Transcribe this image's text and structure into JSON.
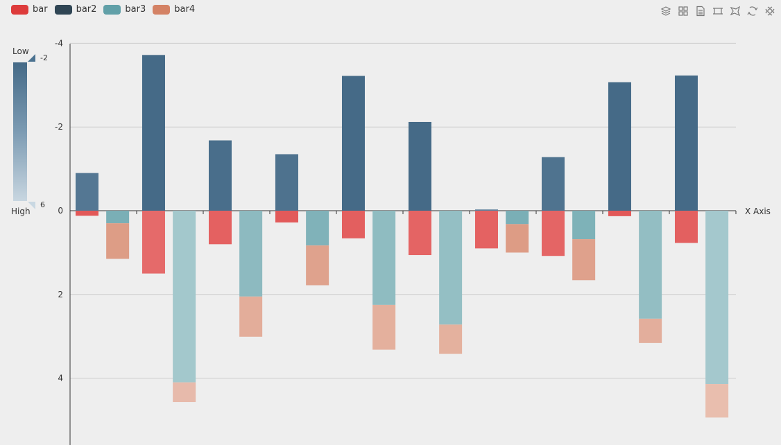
{
  "legend": [
    {
      "name": "bar",
      "color": "#dd3b3b"
    },
    {
      "name": "bar2",
      "color": "#2f4554"
    },
    {
      "name": "bar3",
      "color": "#61a0a8"
    },
    {
      "name": "bar4",
      "color": "#d48265"
    }
  ],
  "toolbox": [
    "layers-icon",
    "grid-icon",
    "data-view-icon",
    "rect-select-icon",
    "lasso-icon",
    "restore-icon",
    "save-image-icon"
  ],
  "visual_map": {
    "low_label": "Low",
    "high_label": "High",
    "max_text": "-2",
    "min_text": "6"
  },
  "chart_data": {
    "type": "bar",
    "x_axis_name": "X Axis",
    "y_inverse": true,
    "ylim": [
      -4,
      5.5
    ],
    "yticks": [
      -4,
      -2,
      0,
      2,
      4
    ],
    "ytick_labels": [
      "-4",
      "-2",
      "0",
      "2",
      "4"
    ],
    "grid": true,
    "stacked_groups": [
      [
        "bar",
        "bar2"
      ],
      [
        "bar3",
        "bar4"
      ]
    ],
    "series": [
      {
        "name": "bar",
        "color": "#dd3b3b",
        "values": [
          0.12,
          1.5,
          0.8,
          0.28,
          0.66,
          1.06,
          0.9,
          1.08,
          0.13,
          0.77
        ]
      },
      {
        "name": "bar2",
        "color": "#2f4554",
        "values": [
          -0.9,
          -3.72,
          -1.68,
          -1.35,
          -3.22,
          -2.12,
          -0.03,
          -1.28,
          -3.07,
          -3.23
        ]
      },
      {
        "name": "bar3",
        "color": "#61a0a8",
        "values": [
          0.3,
          4.1,
          2.05,
          0.83,
          2.25,
          2.72,
          0.32,
          0.68,
          2.58,
          4.14
        ]
      },
      {
        "name": "bar4",
        "color": "#d48265",
        "values": [
          0.85,
          0.47,
          0.96,
          0.95,
          1.07,
          0.7,
          0.68,
          0.98,
          0.58,
          0.8
        ]
      }
    ]
  }
}
